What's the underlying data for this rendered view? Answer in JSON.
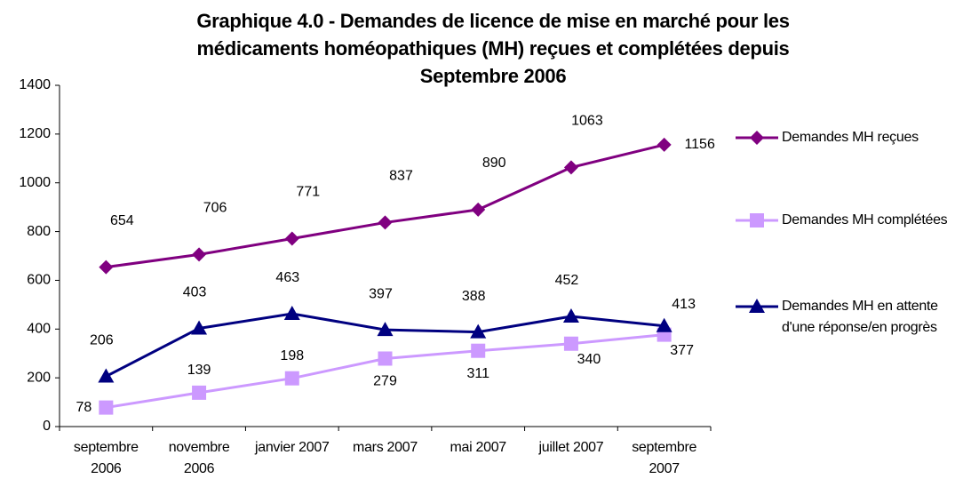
{
  "chart_data": {
    "type": "line",
    "title": "Graphique 4.0 - Demandes de licence de mise en marché pour les médicaments homéopathiques (MH) reçues et complétées depuis Septembre 2006",
    "categories": [
      "septembre 2006",
      "novembre 2006",
      "janvier 2007",
      "mars 2007",
      "mai 2007",
      "juillet 2007",
      "septembre 2007"
    ],
    "series": [
      {
        "name": "Demandes MH reçues",
        "color": "#800080",
        "values": [
          654,
          706,
          771,
          837,
          890,
          1063,
          1156
        ]
      },
      {
        "name": "Demandes MH complétées",
        "color": "#cc99ff",
        "values": [
          78,
          139,
          198,
          279,
          311,
          340,
          377
        ]
      },
      {
        "name": "Demandes MH en attente d'une réponse/en progrès",
        "color": "#000080",
        "values": [
          206,
          403,
          463,
          397,
          388,
          452,
          413
        ]
      }
    ],
    "ylim": [
      0,
      1400
    ],
    "yticks": [
      0,
      200,
      400,
      600,
      800,
      1000,
      1200,
      1400
    ],
    "legend": "right"
  }
}
